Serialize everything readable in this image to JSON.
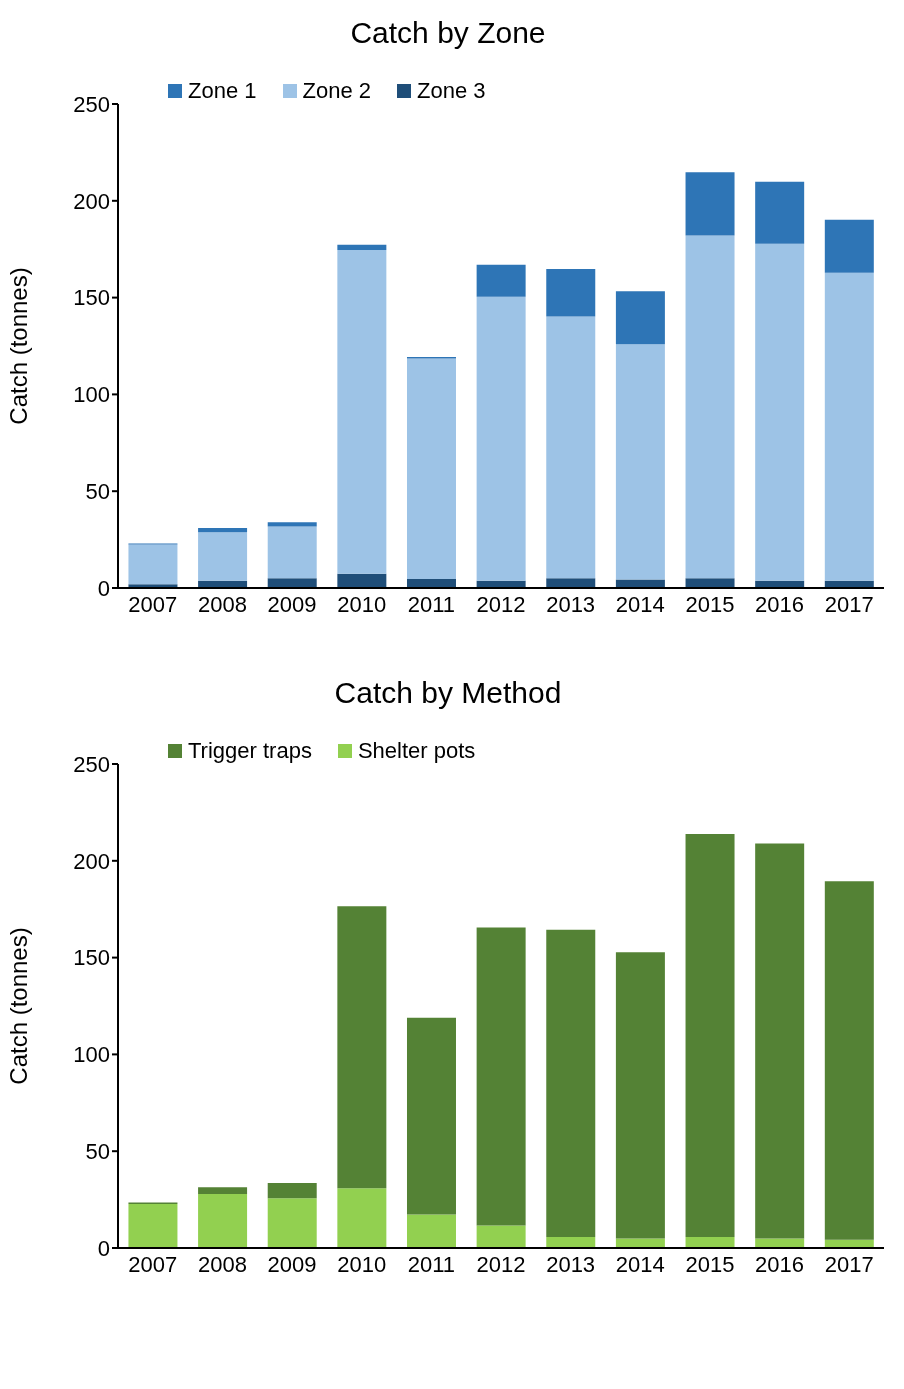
{
  "chart_data": [
    {
      "type": "bar",
      "title": "Catch by Zone",
      "ylabel": "Catch (tonnes)",
      "stacked": true,
      "legend": "top left",
      "grid": false,
      "categories": [
        "2007",
        "2008",
        "2009",
        "2010",
        "2011",
        "2012",
        "2013",
        "2014",
        "2015",
        "2016",
        "2017"
      ],
      "ylim": [
        0,
        250
      ],
      "yticks": [
        0,
        50,
        100,
        150,
        200,
        250
      ],
      "series": [
        {
          "name": "Zone 3",
          "color": "#1f4e79",
          "values": [
            2,
            3.7,
            5.1,
            7.3,
            4.6,
            3.7,
            5.1,
            4.4,
            5.1,
            3.7,
            3.7
          ]
        },
        {
          "name": "Zone 2",
          "color": "#9dc3e6",
          "values": [
            20.5,
            25.1,
            26.7,
            167.3,
            114,
            146.7,
            135.2,
            121.5,
            177,
            174.1,
            159.1
          ]
        },
        {
          "name": "Zone 1",
          "color": "#2e75b6",
          "values": [
            0.5,
            2.2,
            2.2,
            2.7,
            0.7,
            16.6,
            24.5,
            27.4,
            32.6,
            32,
            27.4
          ]
        }
      ]
    },
    {
      "type": "bar",
      "title": "Catch by Method",
      "ylabel": "Catch (tonnes)",
      "stacked": true,
      "legend": "top left",
      "grid": false,
      "categories": [
        "2007",
        "2008",
        "2009",
        "2010",
        "2011",
        "2012",
        "2013",
        "2014",
        "2015",
        "2016",
        "2017"
      ],
      "ylim": [
        0,
        250
      ],
      "yticks": [
        0,
        50,
        100,
        150,
        200,
        250
      ],
      "series": [
        {
          "name": "Shelter pots",
          "color": "#92d050",
          "values": [
            22.7,
            27.9,
            25.7,
            30.9,
            17.3,
            11.6,
            5.7,
            4.9,
            5.7,
            4.9,
            4.2
          ]
        },
        {
          "name": "Trigger traps",
          "color": "#548235",
          "values": [
            0.8,
            3.5,
            7.9,
            145.6,
            101.6,
            154,
            158.7,
            147.9,
            208.1,
            204,
            185.2
          ]
        }
      ]
    }
  ]
}
